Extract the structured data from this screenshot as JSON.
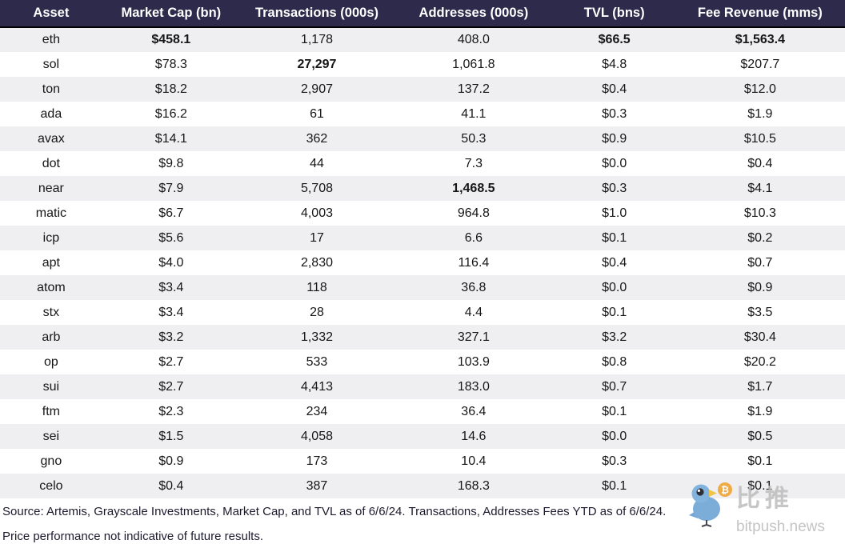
{
  "chart_data": {
    "type": "table",
    "columns": [
      "Asset",
      "Market Cap (bn)",
      "Transactions (000s)",
      "Addresses (000s)",
      "TVL (bns)",
      "Fee Revenue (mms)"
    ],
    "rows": [
      [
        "eth",
        "$458.1",
        "1,178",
        "408.0",
        "$66.5",
        "$1,563.4"
      ],
      [
        "sol",
        "$78.3",
        "27,297",
        "1,061.8",
        "$4.8",
        "$207.7"
      ],
      [
        "ton",
        "$18.2",
        "2,907",
        "137.2",
        "$0.4",
        "$12.0"
      ],
      [
        "ada",
        "$16.2",
        "61",
        "41.1",
        "$0.3",
        "$1.9"
      ],
      [
        "avax",
        "$14.1",
        "362",
        "50.3",
        "$0.9",
        "$10.5"
      ],
      [
        "dot",
        "$9.8",
        "44",
        "7.3",
        "$0.0",
        "$0.4"
      ],
      [
        "near",
        "$7.9",
        "5,708",
        "1,468.5",
        "$0.3",
        "$4.1"
      ],
      [
        "matic",
        "$6.7",
        "4,003",
        "964.8",
        "$1.0",
        "$10.3"
      ],
      [
        "icp",
        "$5.6",
        "17",
        "6.6",
        "$0.1",
        "$0.2"
      ],
      [
        "apt",
        "$4.0",
        "2,830",
        "116.4",
        "$0.4",
        "$0.7"
      ],
      [
        "atom",
        "$3.4",
        "118",
        "36.8",
        "$0.0",
        "$0.9"
      ],
      [
        "stx",
        "$3.4",
        "28",
        "4.4",
        "$0.1",
        "$3.5"
      ],
      [
        "arb",
        "$3.2",
        "1,332",
        "327.1",
        "$3.2",
        "$30.4"
      ],
      [
        "op",
        "$2.7",
        "533",
        "103.9",
        "$0.8",
        "$20.2"
      ],
      [
        "sui",
        "$2.7",
        "4,413",
        "183.0",
        "$0.7",
        "$1.7"
      ],
      [
        "ftm",
        "$2.3",
        "234",
        "36.4",
        "$0.1",
        "$1.9"
      ],
      [
        "sei",
        "$1.5",
        "4,058",
        "14.6",
        "$0.0",
        "$0.5"
      ],
      [
        "gno",
        "$0.9",
        "173",
        "10.4",
        "$0.3",
        "$0.1"
      ],
      [
        "celo",
        "$0.4",
        "387",
        "168.3",
        "$0.1",
        "$0.1"
      ]
    ],
    "bold_cells": {
      "0": [
        1,
        4,
        5
      ],
      "1": [
        2
      ],
      "6": [
        3
      ]
    },
    "layout_hints": {
      "striped_rows": "odd rows shaded",
      "alignment": "center"
    }
  },
  "footer": {
    "source_note": "Source: Artemis, Grayscale Investments, Market Cap, and TVL as of 6/6/24. Transactions, Addresses Fees YTD as of 6/6/24.",
    "disclaimer": "Price performance not indicative of future results."
  },
  "watermark": {
    "brand_cn": "比推",
    "brand_domain": "bitpush.news",
    "bird_icon": "bitpush-bird-icon",
    "coin_icon": "bitcoin-icon"
  },
  "colors": {
    "header_bg": "#2e2a4b",
    "header_text": "#ffffff",
    "row_alt": "#efeff1",
    "body_text": "#161616",
    "footer_text": "#1c1b2e",
    "watermark_gray": "#bdbdbd",
    "bird_blue": "#75a9d8",
    "coin_orange": "#efa83d"
  }
}
